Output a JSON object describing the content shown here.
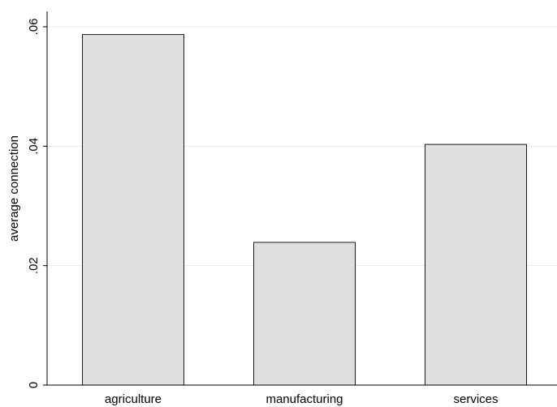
{
  "chart_data": {
    "type": "bar",
    "title": "",
    "xlabel": "",
    "ylabel": "average connection",
    "categories": [
      "agriculture",
      "manufacturing",
      "services"
    ],
    "values": [
      0.0587,
      0.0239,
      0.0403
    ],
    "ylim": [
      0,
      0.06
    ],
    "yticks": [
      0,
      0.02,
      0.04,
      0.06
    ],
    "ytick_labels": [
      "0",
      ".02",
      ".04",
      ".06"
    ],
    "grid": true,
    "legend": "none",
    "colors": {
      "bar_fill": "#e0e0e0",
      "bar_stroke": "#1a1a1a",
      "grid": "#eaeaea",
      "axis": "#000000"
    }
  }
}
